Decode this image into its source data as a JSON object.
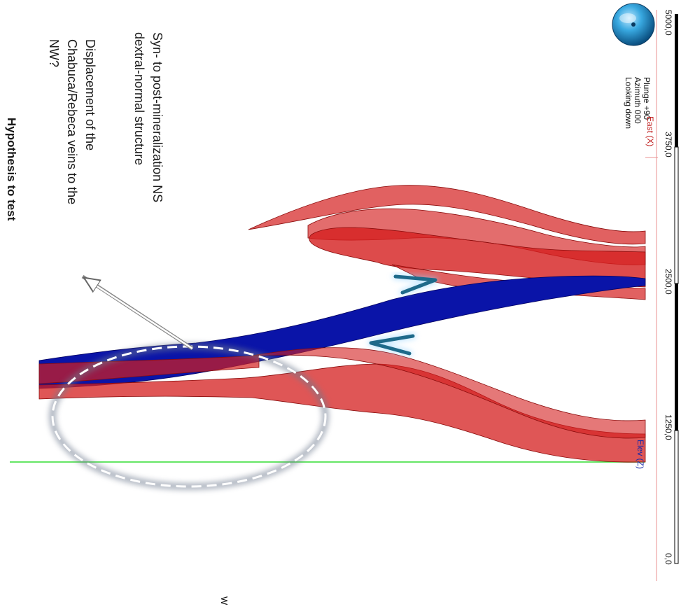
{
  "title": "Hypothesis to test",
  "notes": {
    "displacement": [
      "Displacement of the",
      "Chabuca/Rebeca veins to the",
      "NW?"
    ],
    "structure": [
      "Syn- to post-mineralization NS",
      "dextral-normal structure"
    ]
  },
  "compass": {
    "plunge": "Plunge +90",
    "azimuth": "Azimuth 000",
    "view": "Looking down"
  },
  "axes": {
    "east_label": "East (X)",
    "elev_label": "Elev (Z)",
    "ticks": [
      "0,0",
      "1250,0",
      "2500,0",
      "3750,0",
      "5000,0"
    ]
  },
  "corner_letter": "W",
  "colors": {
    "veins": "#d41e1e",
    "fault": "#0a14a8",
    "elev_line": "#33dd33",
    "axis_line": "#e89090",
    "ellipse": "#8a96a8",
    "arrows": "#1e6a8a"
  }
}
